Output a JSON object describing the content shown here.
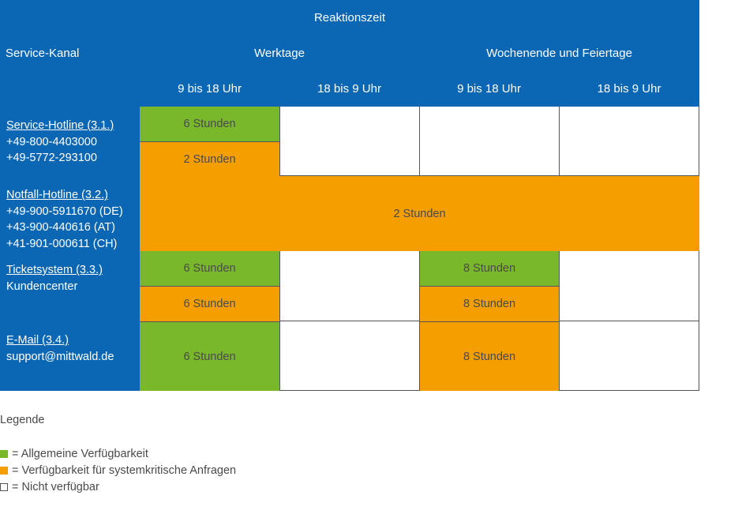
{
  "header": {
    "reaktionszeit": "Reaktionszeit",
    "service_kanal": "Service-Kanal",
    "werktage": "Werktage",
    "wochenende": "Wochenende und Feiertage",
    "slots": [
      "9 bis 18 Uhr",
      "18 bis 9 Uhr",
      "9 bis 18 Uhr",
      "18 bis 9 Uhr"
    ]
  },
  "channels": [
    {
      "link": "Service-Hotline (3.1.)",
      "lines": [
        "+49-800-4403000",
        "+49-5772-293100"
      ]
    },
    {
      "link": "Notfall-Hotline (3.2.)",
      "lines": [
        "+49-900-5911670 (DE)",
        "+43-900-440616 (AT)",
        "+41-901-000611 (CH)"
      ]
    },
    {
      "link": "Ticketsystem (3.3.)",
      "lines": [
        "Kundencenter"
      ]
    },
    {
      "link": "E-Mail (3.4.)",
      "lines": [
        "support@mittwald.de"
      ]
    }
  ],
  "cells": {
    "hotline_general": "6 Stunden",
    "hotline_critical": "2 Stunden",
    "notfall": "2 Stunden",
    "ticket_wd_general": "6 Stunden",
    "ticket_wd_critical": "6 Stunden",
    "ticket_we_general": "8 Stunden",
    "ticket_we_critical": "8 Stunden",
    "email_wd": "6 Stunden",
    "email_we": "8 Stunden"
  },
  "legend": {
    "title": "Legende",
    "items": [
      {
        "text": "= Allgemeine Verfügbarkeit",
        "color": "#78b82a"
      },
      {
        "text": "= Verfügbarkeit für systemkritische Anfragen",
        "color": "#f49e00"
      },
      {
        "text": "= Nicht verfügbar",
        "color": "#ffffff"
      }
    ]
  },
  "colors": {
    "header_blue": "#0b66b3",
    "general_green": "#78b82a",
    "critical_orange": "#f49e00"
  }
}
